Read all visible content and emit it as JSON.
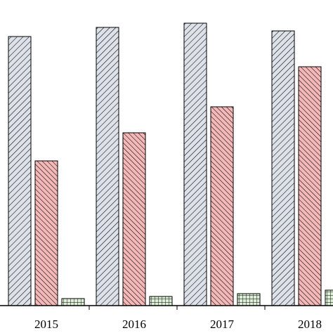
{
  "chart_data": {
    "type": "bar",
    "categories": [
      "2015",
      "2016",
      "2017",
      "2018"
    ],
    "series": [
      {
        "color": "#dde2ea",
        "values": [
          383,
          396,
          402,
          391
        ]
      },
      {
        "color": "#f4b8b8",
        "values": [
          206,
          246,
          283,
          340
        ]
      },
      {
        "color": "#dcefd6",
        "values": [
          10,
          13,
          17,
          22
        ]
      }
    ],
    "ylim": [
      0,
      435
    ]
  }
}
